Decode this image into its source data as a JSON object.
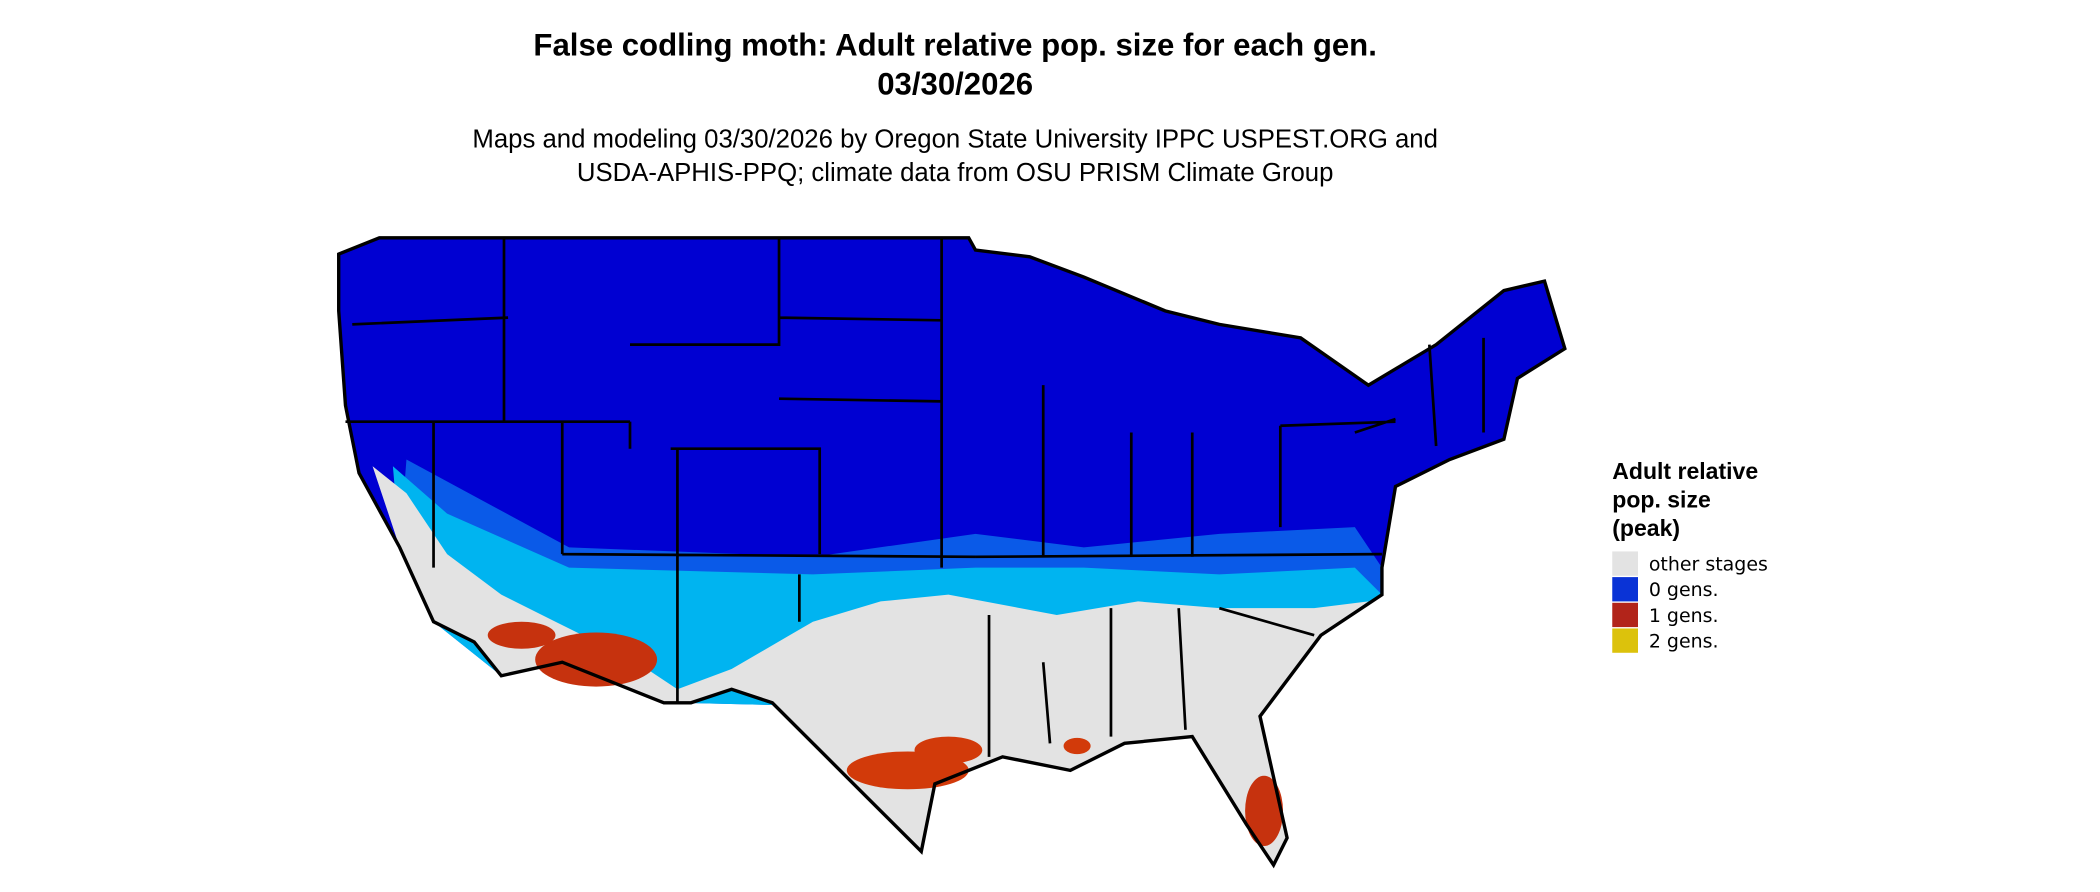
{
  "header": {
    "title_lines": [
      "False codling moth: Adult relative pop. size for each gen.",
      "03/30/2026"
    ],
    "subtitle_lines": [
      "Maps and modeling 03/30/2026 by Oregon State University IPPC USPEST.ORG and",
      "USDA-APHIS-PPQ; climate data from OSU PRISM Climate Group"
    ]
  },
  "legend": {
    "title_lines": [
      "Adult relative",
      "pop. size",
      "(peak)"
    ],
    "items": [
      {
        "label": "other stages",
        "color": "#e3e3e3"
      },
      {
        "label": "0 gens.",
        "color": "#0a33d6"
      },
      {
        "label": "1 gens.",
        "color": "#b2241a"
      },
      {
        "label": "2 gens.",
        "color": "#dcc20c"
      }
    ]
  }
}
